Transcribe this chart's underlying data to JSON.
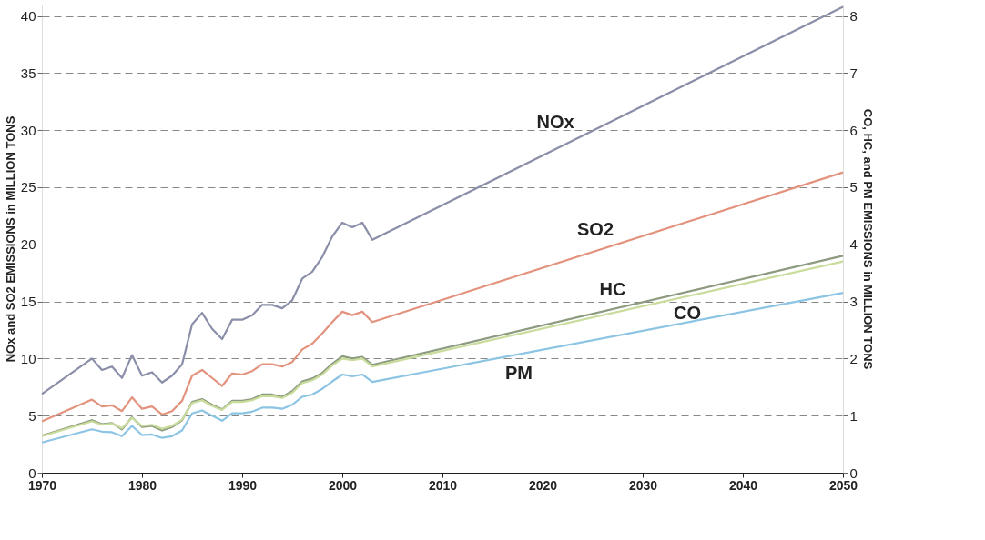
{
  "chart_data": {
    "type": "line",
    "ylabel": "NOx and SO2 EMISSIONS in MILLION TONS",
    "y2label": "CO, HC, and PM EMISSIONS in MILLION TONS",
    "x": [
      1970,
      1975,
      1976,
      1977,
      1978,
      1979,
      1980,
      1981,
      1982,
      1983,
      1984,
      1985,
      1986,
      1987,
      1988,
      1989,
      1990,
      1991,
      1992,
      1993,
      1994,
      1995,
      1996,
      1997,
      1998,
      1999,
      2000,
      2001,
      2002,
      2003,
      2050
    ],
    "xlim": [
      1970,
      2050
    ],
    "xticks": [
      1970,
      1980,
      1990,
      2000,
      2010,
      2020,
      2030,
      2040,
      2050
    ],
    "ylim": [
      0,
      41
    ],
    "yticks": [
      0,
      5,
      10,
      15,
      20,
      25,
      30,
      35,
      40
    ],
    "y2lim": [
      0,
      8.2
    ],
    "y2ticks": [
      0,
      1,
      2,
      3,
      4,
      5,
      6,
      7,
      8
    ],
    "grid": "y",
    "legend": false,
    "series": [
      {
        "name": "NOx",
        "color": "#8a8ea8",
        "values": [
          6.9,
          10.0,
          9.0,
          9.3,
          8.3,
          10.3,
          8.5,
          8.8,
          7.9,
          8.5,
          9.5,
          13.0,
          14.0,
          12.6,
          11.7,
          13.4,
          13.4,
          13.8,
          14.7,
          14.7,
          14.4,
          15.1,
          17.0,
          17.6,
          18.9,
          20.7,
          21.9,
          21.5,
          21.9,
          20.4,
          40.8
        ]
      },
      {
        "name": "SO2",
        "color": "#e3937d",
        "values": [
          4.5,
          6.4,
          5.8,
          5.9,
          5.4,
          6.6,
          5.6,
          5.8,
          5.1,
          5.4,
          6.3,
          8.5,
          9.0,
          8.3,
          7.6,
          8.7,
          8.6,
          8.9,
          9.5,
          9.5,
          9.3,
          9.7,
          10.8,
          11.3,
          12.2,
          13.2,
          14.1,
          13.8,
          14.1,
          13.2,
          26.3
        ]
      },
      {
        "name": "HC",
        "color": "#8c9a80",
        "axis": "y2",
        "values": [
          0.65,
          0.92,
          0.85,
          0.87,
          0.76,
          0.97,
          0.8,
          0.82,
          0.74,
          0.8,
          0.92,
          1.24,
          1.29,
          1.19,
          1.11,
          1.26,
          1.26,
          1.29,
          1.37,
          1.37,
          1.33,
          1.43,
          1.6,
          1.65,
          1.75,
          1.91,
          2.04,
          2.0,
          2.03,
          1.89,
          3.8
        ]
      },
      {
        "name": "CO",
        "color": "#c9dc9c",
        "axis": "y2",
        "values": [
          0.64,
          0.9,
          0.84,
          0.86,
          0.78,
          0.96,
          0.82,
          0.84,
          0.77,
          0.82,
          0.93,
          1.22,
          1.27,
          1.17,
          1.1,
          1.24,
          1.24,
          1.27,
          1.34,
          1.34,
          1.31,
          1.4,
          1.57,
          1.62,
          1.72,
          1.88,
          2.0,
          1.97,
          2.0,
          1.86,
          3.7
        ]
      },
      {
        "name": "PM",
        "color": "#8cc4e4",
        "axis": "y2",
        "values": [
          0.53,
          0.76,
          0.72,
          0.71,
          0.64,
          0.82,
          0.66,
          0.67,
          0.61,
          0.64,
          0.74,
          1.04,
          1.09,
          1.0,
          0.91,
          1.04,
          1.04,
          1.07,
          1.14,
          1.14,
          1.12,
          1.19,
          1.33,
          1.37,
          1.47,
          1.6,
          1.72,
          1.69,
          1.72,
          1.59,
          3.15
        ]
      }
    ]
  }
}
